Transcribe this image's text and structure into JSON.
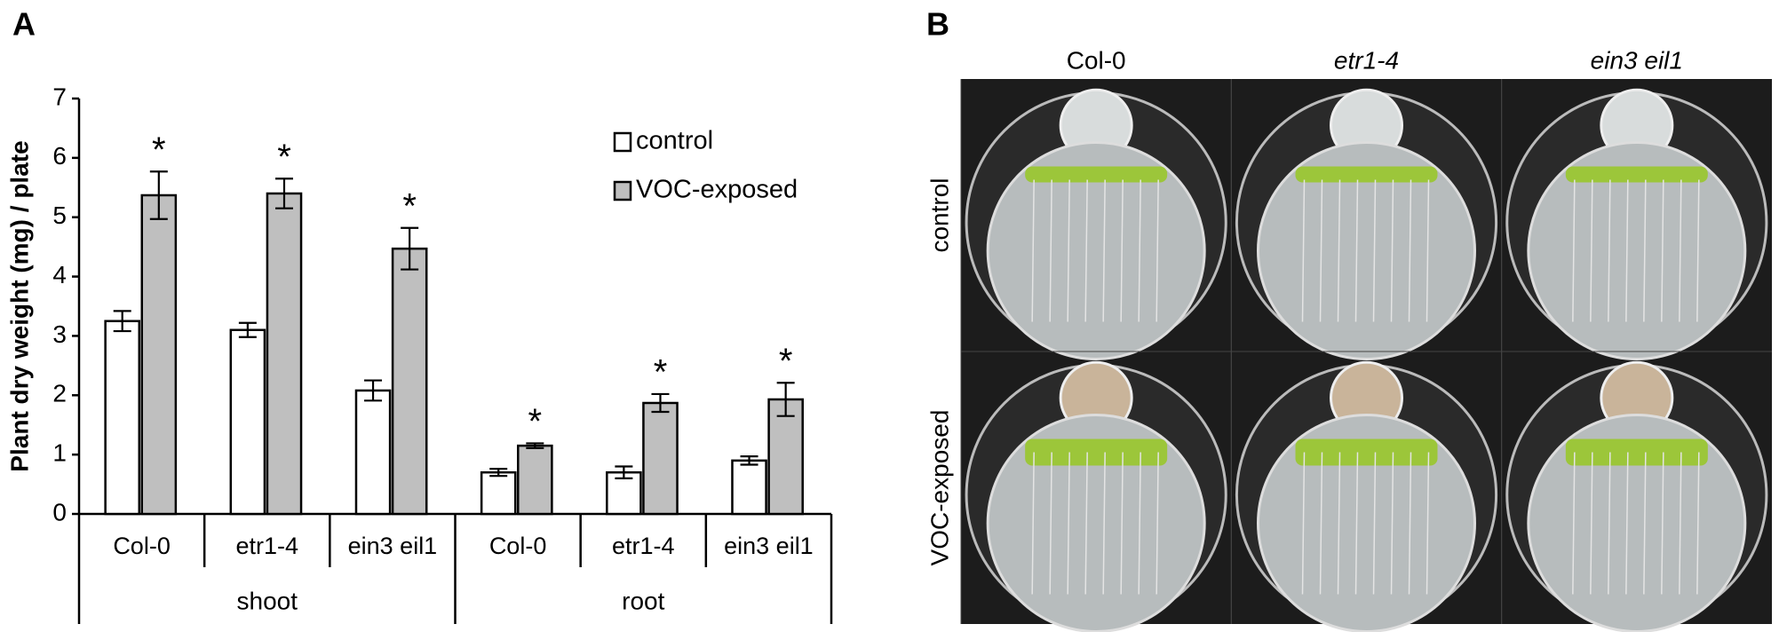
{
  "chart_data": {
    "type": "bar",
    "panel_label": "A",
    "y_label": "Plant dry weight (mg) / plate",
    "categories": [
      "Col-0",
      "etr1-4",
      "ein3 eil1",
      "Col-0",
      "etr1-4",
      "ein3 eil1"
    ],
    "groups": [
      "shoot",
      "root"
    ],
    "series": [
      {
        "name": "control",
        "color": "#ffffff",
        "values": [
          3.25,
          3.1,
          2.08,
          0.7,
          0.7,
          0.9
        ],
        "errors": [
          0.17,
          0.12,
          0.17,
          0.06,
          0.1,
          0.07
        ]
      },
      {
        "name": "VOC-exposed",
        "color": "#bfbfbf",
        "values": [
          5.37,
          5.4,
          4.47,
          1.15,
          1.87,
          1.93
        ],
        "errors": [
          0.4,
          0.25,
          0.35,
          0.04,
          0.15,
          0.28
        ],
        "annotations": [
          "*",
          "*",
          "*",
          "*",
          "*",
          "*"
        ]
      }
    ],
    "ylim": [
      0,
      7
    ],
    "yticks": [
      0,
      1,
      2,
      3,
      4,
      5,
      6,
      7
    ],
    "legend": "top-right"
  },
  "panel_b": {
    "label": "B",
    "columns": [
      "Col-0",
      "etr1-4",
      "ein3 eil1"
    ],
    "rows": [
      "control",
      "VOC-exposed"
    ]
  }
}
